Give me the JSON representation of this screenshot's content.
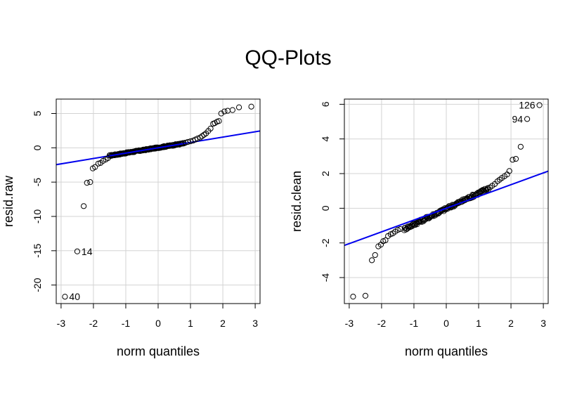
{
  "figure_title": "QQ-Plots",
  "colors": {
    "reference_line": "#0000ee",
    "fit_band": "#2222cc",
    "grid": "#d3d3d3",
    "points": "#000000"
  },
  "chart_data": [
    {
      "type": "scatter",
      "subtype": "qq-plot",
      "xlabel": "norm quantiles",
      "ylabel": "resid.raw",
      "xlim": [
        -3.15,
        3.15
      ],
      "ylim": [
        -22.7,
        7.1
      ],
      "xticks": [
        "-3",
        "-2",
        "-1",
        "0",
        "1",
        "2",
        "3"
      ],
      "yticks": [
        "-20",
        "-15",
        "-10",
        "-5",
        "0",
        "5"
      ],
      "grid": true,
      "reference_line": {
        "intercept": 0.0,
        "slope": 0.78
      },
      "bulk": {
        "x_from": -1.5,
        "x_to": 0.8,
        "y_at_from": -1.15,
        "y_at_to": 0.65,
        "label": "dense band of overlapping points"
      },
      "points": [
        [
          -2.88,
          -21.7
        ],
        [
          -2.5,
          -15.1
        ],
        [
          -2.3,
          -8.5
        ],
        [
          -2.2,
          -5.1
        ],
        [
          -2.1,
          -5.0
        ],
        [
          -2.02,
          -3.0
        ],
        [
          -1.95,
          -2.8
        ],
        [
          -1.85,
          -2.3
        ],
        [
          -1.78,
          -2.2
        ],
        [
          -1.7,
          -1.9
        ],
        [
          -1.62,
          -1.7
        ],
        [
          -1.55,
          -1.5
        ],
        [
          0.85,
          0.75
        ],
        [
          0.92,
          0.85
        ],
        [
          1.0,
          0.95
        ],
        [
          1.08,
          1.05
        ],
        [
          1.15,
          1.2
        ],
        [
          1.22,
          1.35
        ],
        [
          1.3,
          1.5
        ],
        [
          1.36,
          1.7
        ],
        [
          1.42,
          1.9
        ],
        [
          1.48,
          2.1
        ],
        [
          1.55,
          2.45
        ],
        [
          1.62,
          2.8
        ],
        [
          1.7,
          3.5
        ],
        [
          1.75,
          3.6
        ],
        [
          1.82,
          3.8
        ],
        [
          1.88,
          3.9
        ],
        [
          1.95,
          5.0
        ],
        [
          2.05,
          5.3
        ],
        [
          2.15,
          5.4
        ],
        [
          2.3,
          5.5
        ],
        [
          2.5,
          5.9
        ],
        [
          2.88,
          6.0
        ]
      ],
      "labels": [
        {
          "text": "40",
          "x": -2.88,
          "y": -21.7
        },
        {
          "text": "14",
          "x": -2.5,
          "y": -15.1
        }
      ]
    },
    {
      "type": "scatter",
      "subtype": "qq-plot",
      "xlabel": "norm quantiles",
      "ylabel": "resid.clean",
      "xlim": [
        -3.15,
        3.15
      ],
      "ylim": [
        -5.5,
        6.3
      ],
      "xticks": [
        "-3",
        "-2",
        "-1",
        "0",
        "1",
        "2",
        "3"
      ],
      "yticks": [
        "-4",
        "-2",
        "0",
        "2",
        "4",
        "6"
      ],
      "grid": true,
      "reference_line": {
        "intercept": 0.0,
        "slope": 0.68
      },
      "bulk": {
        "x_from": -1.3,
        "x_to": 1.3,
        "y_at_from": -1.2,
        "y_at_to": 1.15,
        "label": "dense band of overlapping points"
      },
      "points": [
        [
          -2.88,
          -5.1
        ],
        [
          -2.5,
          -5.05
        ],
        [
          -2.3,
          -3.0
        ],
        [
          -2.2,
          -2.7
        ],
        [
          -2.1,
          -2.2
        ],
        [
          -2.02,
          -2.1
        ],
        [
          -1.95,
          -1.9
        ],
        [
          -1.88,
          -1.85
        ],
        [
          -1.8,
          -1.6
        ],
        [
          -1.72,
          -1.5
        ],
        [
          -1.65,
          -1.45
        ],
        [
          -1.58,
          -1.35
        ],
        [
          -1.5,
          -1.25
        ],
        [
          -1.42,
          -1.2
        ],
        [
          1.35,
          1.2
        ],
        [
          1.42,
          1.3
        ],
        [
          1.5,
          1.4
        ],
        [
          1.58,
          1.55
        ],
        [
          1.65,
          1.65
        ],
        [
          1.72,
          1.75
        ],
        [
          1.8,
          1.85
        ],
        [
          1.88,
          1.95
        ],
        [
          1.95,
          2.15
        ],
        [
          2.05,
          2.8
        ],
        [
          2.15,
          2.85
        ],
        [
          2.3,
          3.55
        ],
        [
          2.5,
          5.15
        ],
        [
          2.88,
          5.95
        ]
      ],
      "labels": [
        {
          "text": "126",
          "x": 2.88,
          "y": 5.95
        },
        {
          "text": "94",
          "x": 2.5,
          "y": 5.15
        }
      ]
    }
  ]
}
